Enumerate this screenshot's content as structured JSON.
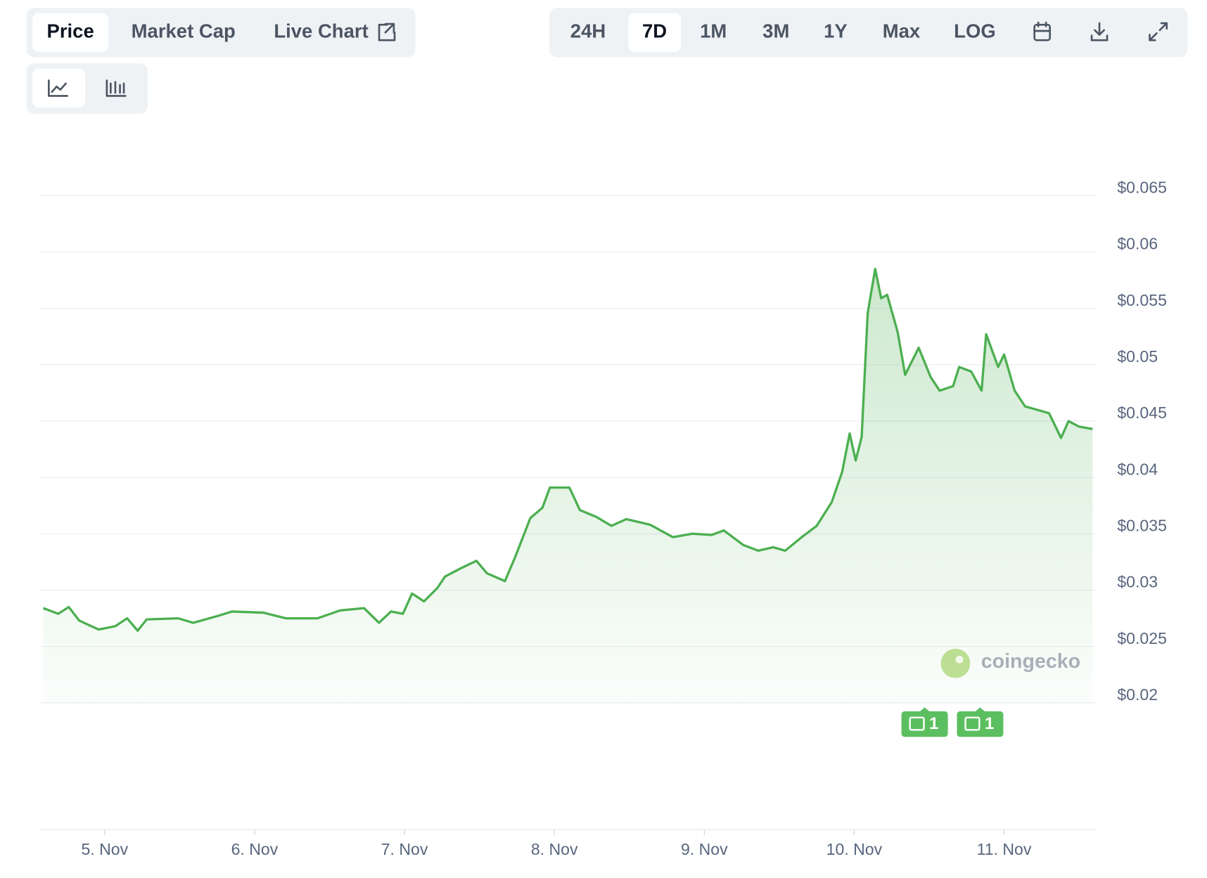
{
  "ui": {
    "tabs": [
      "Price",
      "Market Cap",
      "Live Chart"
    ],
    "ranges": [
      "24H",
      "7D",
      "1M",
      "3M",
      "1Y",
      "Max",
      "LOG"
    ]
  },
  "chart_data": {
    "type": "line",
    "color": "#4caf50",
    "x": [
      4.59,
      4.69,
      4.76,
      4.83,
      4.96,
      5.07,
      5.15,
      5.22,
      5.28,
      5.49,
      5.59,
      5.75,
      5.85,
      6.06,
      6.21,
      6.42,
      6.57,
      6.73,
      6.83,
      6.91,
      6.99,
      7.05,
      7.13,
      7.22,
      7.27,
      7.37,
      7.48,
      7.55,
      7.67,
      7.74,
      7.84,
      7.92,
      7.97,
      8.1,
      8.17,
      8.28,
      8.38,
      8.48,
      8.64,
      8.79,
      8.92,
      9.05,
      9.13,
      9.26,
      9.36,
      9.46,
      9.54,
      9.65,
      9.75,
      9.85,
      9.92,
      9.97,
      10.01,
      10.05,
      10.09,
      10.14,
      10.18,
      10.22,
      10.29,
      10.34,
      10.43,
      10.51,
      10.57,
      10.66,
      10.7,
      10.78,
      10.85,
      10.88,
      10.96,
      11.0,
      11.07,
      11.14,
      11.22,
      11.3,
      11.38,
      11.43,
      11.5,
      11.59
    ],
    "values": [
      0.0284,
      0.0279,
      0.0285,
      0.0273,
      0.0265,
      0.0268,
      0.0275,
      0.0264,
      0.0274,
      0.0275,
      0.0271,
      0.0277,
      0.0281,
      0.028,
      0.0275,
      0.0275,
      0.0282,
      0.0284,
      0.0271,
      0.0281,
      0.0279,
      0.0297,
      0.029,
      0.0302,
      0.0312,
      0.0319,
      0.0326,
      0.0315,
      0.0308,
      0.033,
      0.0364,
      0.0373,
      0.0391,
      0.0391,
      0.0371,
      0.0365,
      0.0357,
      0.0363,
      0.0358,
      0.0347,
      0.035,
      0.0349,
      0.0353,
      0.034,
      0.0335,
      0.0338,
      0.0335,
      0.0347,
      0.0357,
      0.0378,
      0.0405,
      0.0439,
      0.0415,
      0.0436,
      0.0546,
      0.0585,
      0.0559,
      0.0562,
      0.0529,
      0.0491,
      0.0515,
      0.0489,
      0.0477,
      0.0481,
      0.0498,
      0.0494,
      0.0477,
      0.0527,
      0.0498,
      0.0509,
      0.0477,
      0.0463,
      0.046,
      0.0457,
      0.0435,
      0.045,
      0.0445,
      0.0443
    ],
    "xlim": [
      4.56,
      11.61
    ],
    "xticks": [
      {
        "value": 5,
        "label": "5. Nov"
      },
      {
        "value": 6,
        "label": "6. Nov"
      },
      {
        "value": 7,
        "label": "7. Nov"
      },
      {
        "value": 8,
        "label": "8. Nov"
      },
      {
        "value": 9,
        "label": "9. Nov"
      },
      {
        "value": 10,
        "label": "10. Nov"
      },
      {
        "value": 11,
        "label": "11. Nov"
      }
    ],
    "ylim": [
      0.02,
      0.065
    ],
    "yticks": [
      {
        "value": 0.02,
        "label": "$0.02"
      },
      {
        "value": 0.025,
        "label": "$0.025"
      },
      {
        "value": 0.03,
        "label": "$0.03"
      },
      {
        "value": 0.035,
        "label": "$0.035"
      },
      {
        "value": 0.04,
        "label": "$0.04"
      },
      {
        "value": 0.045,
        "label": "$0.045"
      },
      {
        "value": 0.05,
        "label": "$0.05"
      },
      {
        "value": 0.055,
        "label": "$0.055"
      },
      {
        "value": 0.06,
        "label": "$0.06"
      },
      {
        "value": 0.065,
        "label": "$0.065"
      }
    ],
    "grid": true,
    "watermark": "coingecko",
    "annotations": [
      {
        "x": 10.47,
        "label": "1"
      },
      {
        "x": 10.84,
        "label": "1"
      }
    ]
  }
}
